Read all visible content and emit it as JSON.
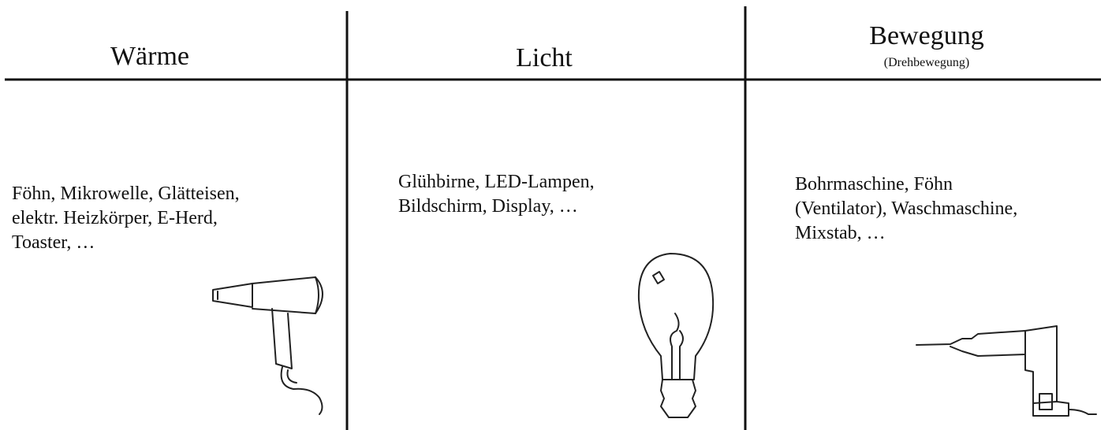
{
  "columns": [
    {
      "title": "Wärme",
      "items": [
        "Föhn, Mikrowelle, Glätteisen,",
        "elektr. Heizkörper, E-Herd,",
        "Toaster, …"
      ]
    },
    {
      "title": "Licht",
      "items": [
        "Glühbirne, LED-Lampen,",
        "Bildschirm, Display, …"
      ]
    },
    {
      "title": "Bewegung",
      "subtitle": "(Drehbewegung)",
      "items": [
        "Bohrmaschine, Föhn",
        "(Ventilator), Waschmaschine,",
        "Mixstab, …"
      ]
    }
  ]
}
